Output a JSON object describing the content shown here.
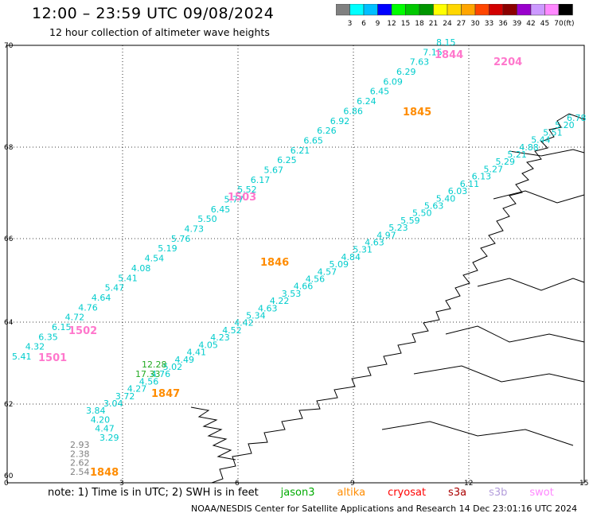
{
  "header": {
    "title": "12:00 – 23:59 UTC 09/08/2024",
    "subtitle": "12 hour collection of altimeter wave heights"
  },
  "color_scale": {
    "colors": [
      "#808080",
      "#00ffff",
      "#00bfff",
      "#0000ff",
      "#00ff00",
      "#00c800",
      "#009600",
      "#ffff00",
      "#ffd700",
      "#ffa500",
      "#ff4500",
      "#d20000",
      "#8b0000",
      "#9900cc",
      "#cc99ff",
      "#ff88ff",
      "#000000"
    ],
    "labels": [
      "3",
      "6",
      "9",
      "12",
      "15",
      "18",
      "21",
      "24",
      "27",
      "30",
      "33",
      "36",
      "39",
      "42",
      "45",
      "70"
    ],
    "unit": "(ft)"
  },
  "axes": {
    "x_ticks": [
      "0",
      "3",
      "6",
      "9",
      "12",
      "15"
    ],
    "y_ticks": [
      "70",
      "68",
      "66",
      "64",
      "62",
      "60"
    ]
  },
  "tracks": [
    {
      "color": "#00cccc",
      "points": [
        "5.41",
        "4.32",
        "6.35",
        "6.15",
        "4.72",
        "4.76",
        "4.64",
        "5.47",
        "5.41",
        "4.08",
        "4.54",
        "5.19",
        "5.76",
        "4.73",
        "5.50",
        "6.45",
        "5.77",
        "5.52",
        "6.17",
        "5.67",
        "6.25",
        "6.21",
        "6.65",
        "6.26",
        "6.92",
        "6.86",
        "6.24",
        "6.45",
        "6.09",
        "6.29",
        "7.63",
        "7.15",
        "8.15"
      ]
    },
    {
      "color": "#00cccc",
      "points": [
        "3.04",
        "3.72",
        "4.27",
        "4.56",
        "4.76",
        "5.02",
        "4.49",
        "4.41",
        "4.05",
        "4.23",
        "4.52",
        "4.42",
        "5.34",
        "4.63",
        "4.22",
        "3.53",
        "4.66",
        "4.56",
        "4.57",
        "5.09",
        "4.84",
        "5.31",
        "4.63",
        "4.97",
        "5.23",
        "5.59",
        "5.50",
        "5.63",
        "5.40",
        "6.03",
        "6.11",
        "6.13",
        "5.27",
        "5.29",
        "5.21",
        "4.88",
        "5.44",
        "5.51",
        "5.20",
        "6.78"
      ]
    },
    {
      "color": "#00cccc",
      "points": [
        "3.84",
        "4.20",
        "4.47",
        "3.29"
      ]
    },
    {
      "color": "#22aa22",
      "points": [
        "17.33",
        "12.28"
      ]
    },
    {
      "color": "#808080",
      "points": [
        "2.93",
        "2.38",
        "2.62",
        "2.54"
      ]
    }
  ],
  "pass_times": [
    {
      "text": "1501",
      "color": "#ff77cc"
    },
    {
      "text": "1502",
      "color": "#ff77cc"
    },
    {
      "text": "1503",
      "color": "#ff77cc"
    },
    {
      "text": "1846",
      "color": "#ff8c00"
    },
    {
      "text": "1845",
      "color": "#ff8c00"
    },
    {
      "text": "1847",
      "color": "#ff8c00"
    },
    {
      "text": "1848",
      "color": "#ff8c00"
    },
    {
      "text": "2204",
      "color": "#ff77cc"
    },
    {
      "text": "1844",
      "color": "#ff77cc"
    }
  ],
  "note": {
    "prefix": "note:  1) Time is in UTC;  2) SWH is in feet",
    "missions": [
      {
        "name": "jason3",
        "color": "#00aa00"
      },
      {
        "name": "altika",
        "color": "#ff8c00"
      },
      {
        "name": "cryosat",
        "color": "#ff0000"
      },
      {
        "name": "s3a",
        "color": "#aa0000"
      },
      {
        "name": "s3b",
        "color": "#b39ddb"
      },
      {
        "name": "swot",
        "color": "#ff88ff"
      }
    ]
  },
  "footer": "NOAA/NESDIS Center for Satellite Applications and Research     14 Dec 23:01:16 UTC 2024"
}
